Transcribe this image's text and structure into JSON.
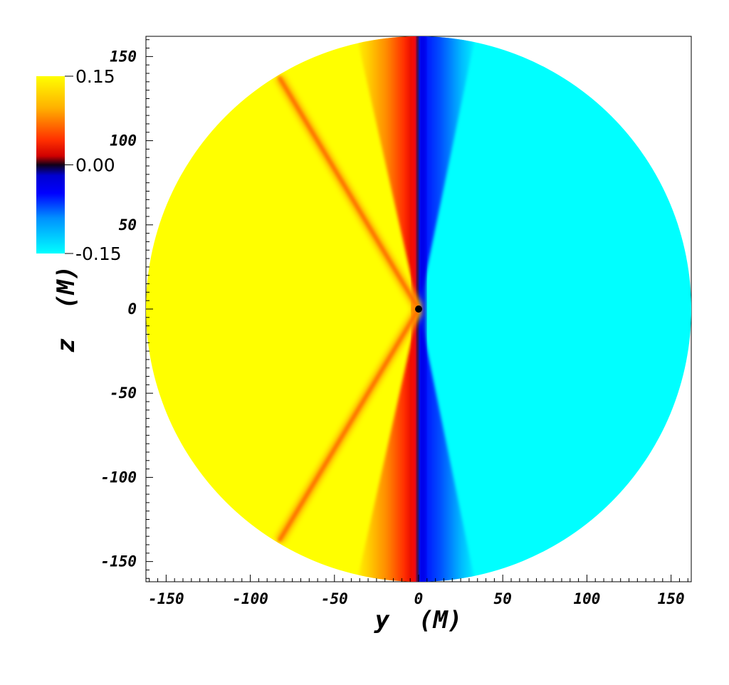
{
  "chart_data": {
    "type": "heatmap",
    "title": "",
    "xlabel": "y  (M)",
    "ylabel": "z  (M)",
    "xlim": [
      -162,
      162
    ],
    "ylim": [
      -162,
      162
    ],
    "x_ticks": [
      -150,
      -100,
      -50,
      0,
      50,
      100,
      150
    ],
    "y_ticks": [
      -150,
      -100,
      -50,
      0,
      50,
      100,
      150
    ],
    "x_tick_labels": [
      "-150",
      "-100",
      "-50",
      "0",
      "50",
      "100",
      "150"
    ],
    "y_tick_labels": [
      "-150",
      "-100",
      "-50",
      "0",
      "50",
      "100",
      "150"
    ],
    "domain_radius": 162,
    "colorbar": {
      "min": -0.15,
      "max": 0.15,
      "tick_labels": [
        "0.15",
        "0.00",
        "-0.15"
      ],
      "tick_values": [
        0.15,
        0.0,
        -0.15
      ],
      "colors": {
        "max": "#ffff00",
        "upper": "#ff2200",
        "zero": "#000040",
        "lower": "#0000ff",
        "min": "#00ffff"
      }
    },
    "field": {
      "positive_side": "y<0",
      "negative_side": "y>0",
      "saturated_positive": 0.15,
      "saturated_negative": -0.15,
      "shock_lines": [
        {
          "from": [
            0,
            0
          ],
          "to": [
            -83,
            138
          ]
        },
        {
          "from": [
            0,
            0
          ],
          "to": [
            -83,
            -138
          ]
        }
      ]
    },
    "grid": false,
    "legend": "colorbar top-left"
  }
}
